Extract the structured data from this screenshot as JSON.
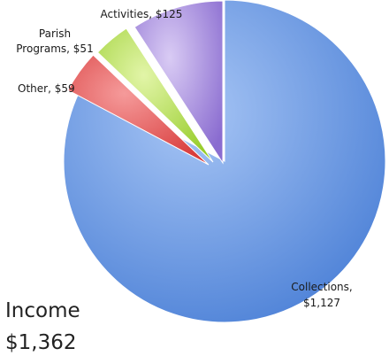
{
  "chart_data": {
    "type": "pie",
    "exploded": true,
    "slices": [
      {
        "key": "collections",
        "label_lines": [
          "Collections,",
          "$1,127"
        ],
        "value": 1127,
        "color": "#5b8fe0"
      },
      {
        "key": "other",
        "label_lines": [
          "Other, $59"
        ],
        "value": 59,
        "color": "#e04a4a"
      },
      {
        "key": "parish-programs",
        "label_lines": [
          "Parish",
          "Programs, $51"
        ],
        "value": 51,
        "color": "#a9d93a"
      },
      {
        "key": "activities",
        "label_lines": [
          "Activities, $125"
        ],
        "value": 125,
        "color": "#9a7ed8"
      }
    ]
  },
  "summary": {
    "title": "Income",
    "total": "$1,362"
  }
}
